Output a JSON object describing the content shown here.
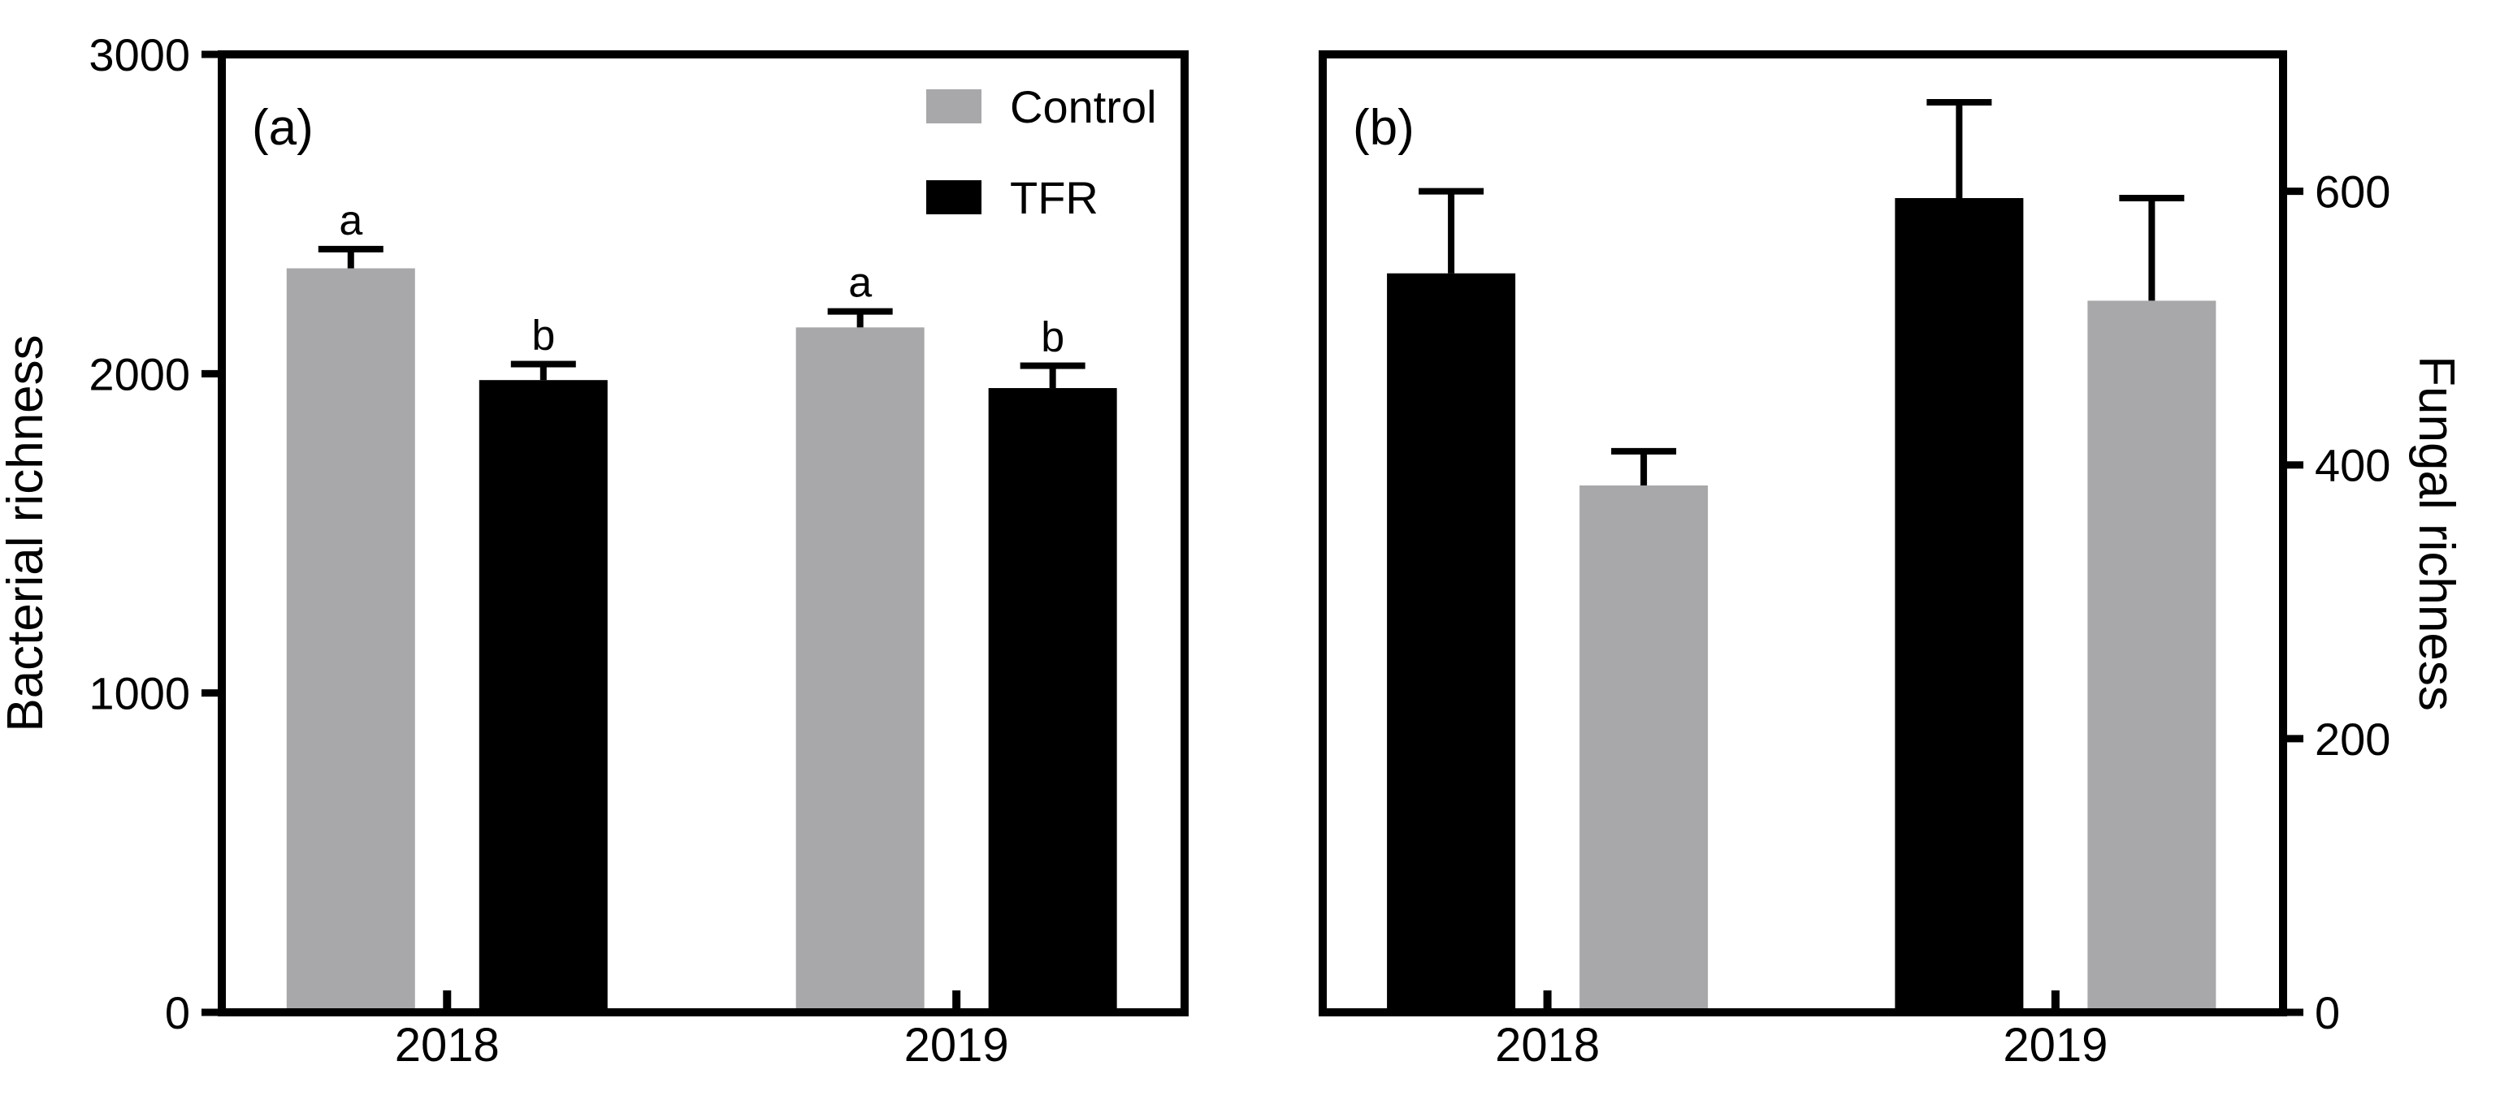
{
  "figure": {
    "background": "#ffffff",
    "axis_color": "#000000",
    "bar_colors": {
      "Control": "#a8a8ab",
      "TFR": "#000000"
    }
  },
  "chart_data": [
    {
      "type": "bar",
      "panel_label": "(a)",
      "ylabel": "Bacterial richness",
      "axis_side": "left",
      "ylim": [
        0,
        3000
      ],
      "yticks": [
        0,
        1000,
        2000,
        3000
      ],
      "categories": [
        "2018",
        "2019"
      ],
      "bar_order": [
        "Control",
        "TFR"
      ],
      "grid": false,
      "series": [
        {
          "name": "Control",
          "color": "#a8a8ab",
          "values": [
            2330,
            2145
          ],
          "error_plus": [
            60,
            50
          ],
          "sig_letters": [
            "a",
            "a"
          ]
        },
        {
          "name": "TFR",
          "color": "#000000",
          "values": [
            1980,
            1955
          ],
          "error_plus": [
            50,
            70
          ],
          "sig_letters": [
            "b",
            "b"
          ]
        }
      ],
      "legend": {
        "position": "top-right",
        "entries": [
          "Control",
          "TFR"
        ]
      }
    },
    {
      "type": "bar",
      "panel_label": "(b)",
      "ylabel": "Fungal richness",
      "axis_side": "right",
      "ylim": [
        0,
        700
      ],
      "yticks": [
        0,
        200,
        400,
        600
      ],
      "categories": [
        "2018",
        "2019"
      ],
      "bar_order": [
        "TFR",
        "Control"
      ],
      "grid": false,
      "series": [
        {
          "name": "TFR",
          "color": "#000000",
          "values": [
            540,
            595
          ],
          "error_plus": [
            60,
            70
          ],
          "sig_letters": [
            "",
            ""
          ]
        },
        {
          "name": "Control",
          "color": "#a8a8ab",
          "values": [
            385,
            520
          ],
          "error_plus": [
            25,
            75
          ],
          "sig_letters": [
            "",
            ""
          ]
        }
      ],
      "legend": null
    }
  ]
}
